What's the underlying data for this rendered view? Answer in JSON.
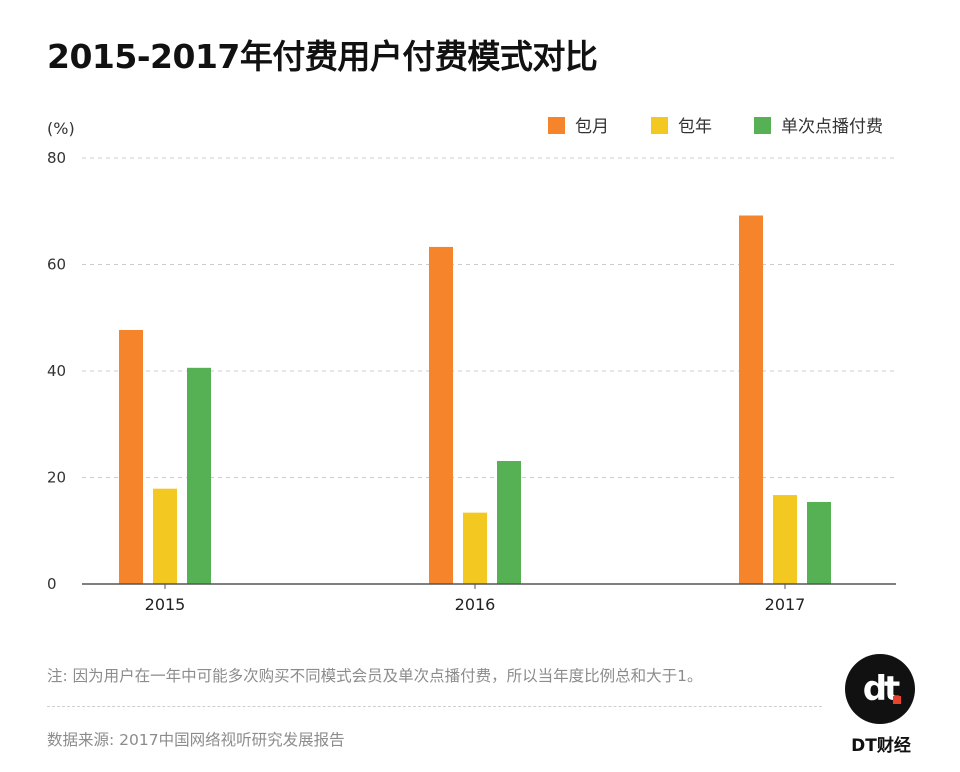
{
  "chart_data": {
    "type": "bar",
    "title": "2015-2017年付费用户付费模式对比",
    "ylabel": "(%)",
    "xlabel": "",
    "ylim": [
      0,
      80
    ],
    "yticks": [
      0,
      20,
      40,
      60,
      80
    ],
    "grid": true,
    "legend_position": "top-right",
    "categories": [
      "2015",
      "2016",
      "2017"
    ],
    "series": [
      {
        "name": "包月",
        "color": "#f5842b",
        "values": [
          47.7,
          63.3,
          69.2
        ]
      },
      {
        "name": "包年",
        "color": "#f2c821",
        "values": [
          17.9,
          13.4,
          16.7
        ]
      },
      {
        "name": "单次点播付费",
        "color": "#56b154",
        "values": [
          40.6,
          23.1,
          15.4
        ]
      }
    ]
  },
  "footnote": "注: 因为用户在一年中可能多次购买不同模式会员及单次点播付费，所以当年度比例总和大于1。",
  "source": "数据来源: 2017中国网络视听研究发展报告",
  "logo": {
    "mark": "dt",
    "text": "DT财经",
    "accent": "#e8432e"
  }
}
